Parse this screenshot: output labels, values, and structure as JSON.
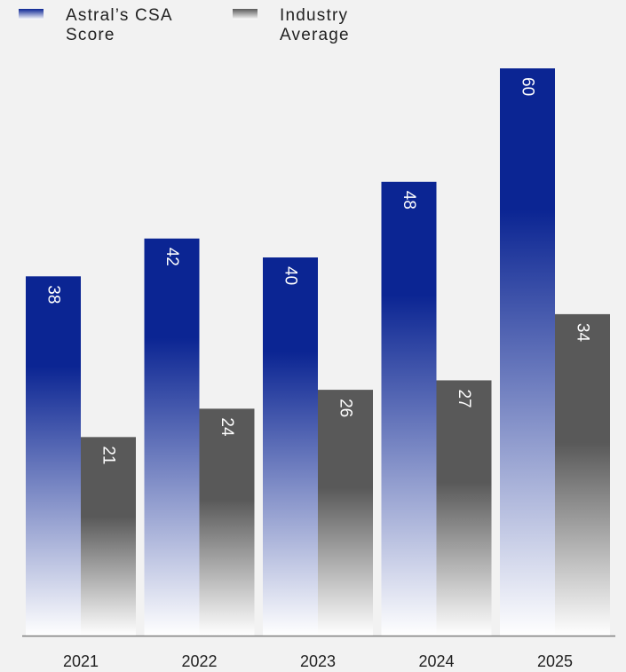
{
  "chart_data": {
    "type": "bar",
    "categories": [
      "2021",
      "2022",
      "2023",
      "2024",
      "2025"
    ],
    "series": [
      {
        "name": "Astral’s CSA Score",
        "values": [
          38,
          42,
          40,
          48,
          60
        ]
      },
      {
        "name": "Industry Average",
        "values": [
          21,
          24,
          26,
          27,
          34
        ]
      }
    ],
    "ylim": [
      0,
      60
    ],
    "grid": false,
    "legend": "top-left",
    "data_labels": "rotated, inside top of bar",
    "colors": {
      "series_1_top": "#0b2593",
      "series_1_bottom": "#ffffff",
      "series_2_top": "#595959",
      "series_2_bottom": "#ffffff",
      "axis": "#7f7f7f",
      "background": "#f2f2f2"
    }
  },
  "legend": {
    "series_1_label": "Astral’s CSA\nScore",
    "series_2_label": "Industry\nAverage"
  }
}
